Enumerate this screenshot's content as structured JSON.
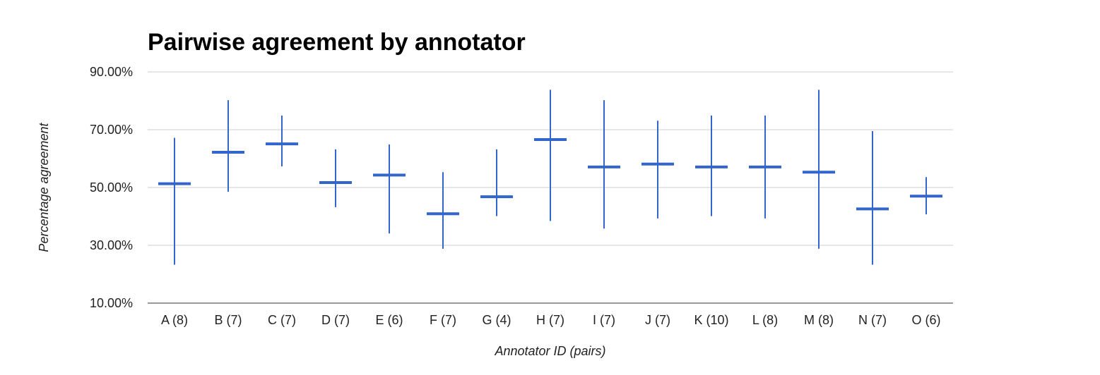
{
  "chart_data": {
    "type": "candlestick",
    "title": "Pairwise agreement by annotator",
    "xlabel": "Annotator ID (pairs)",
    "ylabel": "Percentage agreement",
    "ylim": [
      10,
      90
    ],
    "yticks": [
      10,
      30,
      50,
      70,
      90
    ],
    "ytick_labels": [
      "10.00%",
      "30.00%",
      "50.00%",
      "70.00%",
      "90.00%"
    ],
    "grid": true,
    "color": "#3366cc",
    "categories": [
      "A (8)",
      "B (7)",
      "C (7)",
      "D (7)",
      "E (6)",
      "F (7)",
      "G (4)",
      "H (7)",
      "I (7)",
      "J (7)",
      "K (10)",
      "L (8)",
      "M (8)",
      "N (7)",
      "O (6)"
    ],
    "series": [
      {
        "low": 23.3,
        "high": 67.2,
        "value": 51.3
      },
      {
        "low": 48.5,
        "high": 80.2,
        "value": 62.2
      },
      {
        "low": 57.3,
        "high": 74.9,
        "value": 65.1
      },
      {
        "low": 43.2,
        "high": 63.2,
        "value": 51.7
      },
      {
        "low": 34.1,
        "high": 64.9,
        "value": 54.3
      },
      {
        "low": 28.8,
        "high": 55.3,
        "value": 40.9
      },
      {
        "low": 40.1,
        "high": 63.2,
        "value": 46.8
      },
      {
        "low": 38.4,
        "high": 83.8,
        "value": 66.6
      },
      {
        "low": 35.8,
        "high": 80.2,
        "value": 57.1
      },
      {
        "low": 39.3,
        "high": 73.1,
        "value": 58.1
      },
      {
        "low": 40.1,
        "high": 74.9,
        "value": 57.1
      },
      {
        "low": 39.3,
        "high": 74.9,
        "value": 57.1
      },
      {
        "low": 28.8,
        "high": 83.8,
        "value": 55.3
      },
      {
        "low": 23.3,
        "high": 69.5,
        "value": 42.6
      },
      {
        "low": 40.7,
        "high": 53.6,
        "value": 47.0
      }
    ]
  }
}
